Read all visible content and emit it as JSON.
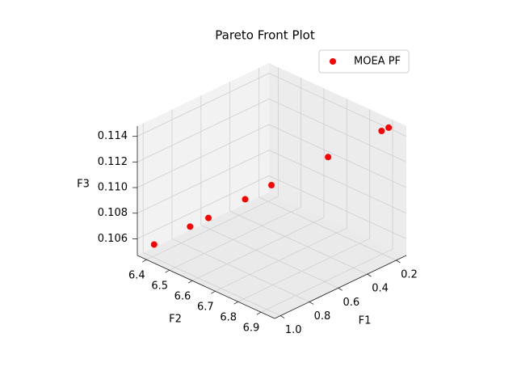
{
  "chart_data": {
    "type": "scatter3d",
    "title": "Pareto Front Plot",
    "xlabel": "F1",
    "ylabel": "F2",
    "zlabel": "F3",
    "xlim": [
      0.13,
      1.04
    ],
    "ylim": [
      6.36,
      6.96
    ],
    "zlim": [
      0.1047,
      0.1148
    ],
    "xticks": [
      0.2,
      0.4,
      0.6,
      0.8,
      {
        "value": 1,
        "label": "1.0"
      }
    ],
    "yticks": [
      6.4,
      6.5,
      6.6,
      6.7,
      6.8,
      6.9
    ],
    "zticks": [
      0.106,
      0.108,
      {
        "value": 0.11,
        "label": "0.110"
      },
      0.112,
      0.114
    ],
    "grid": true,
    "legend": "upper right",
    "series": [
      {
        "name": "MOEA PF",
        "color": "#ff0000",
        "x": [
          0.951,
          0.821,
          0.762,
          0.624,
          0.526,
          0.318,
          0.173,
          0.154
        ],
        "y": [
          6.377,
          6.452,
          6.495,
          6.568,
          6.621,
          6.737,
          6.879,
          6.898
        ],
        "z": [
          0.10521,
          0.10652,
          0.10723,
          0.10854,
          0.10955,
          0.11157,
          0.11399,
          0.1143
        ]
      }
    ]
  }
}
